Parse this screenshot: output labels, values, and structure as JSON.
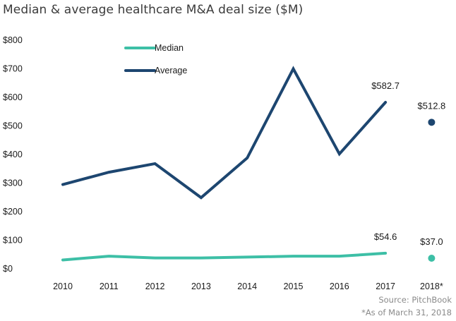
{
  "title": "Median & average healthcare M&A deal size ($M)",
  "source": "Source: PitchBook",
  "footnote": "*As of March 31, 2018",
  "colors": {
    "median": "#3dbfa6",
    "average": "#1d4670"
  },
  "chart_data": {
    "type": "line",
    "title": "Median & average healthcare M&A deal size ($M)",
    "xlabel": "",
    "ylabel": "",
    "categories": [
      "2010",
      "2011",
      "2012",
      "2013",
      "2014",
      "2015",
      "2016",
      "2017",
      "2018*"
    ],
    "yticks": [
      "$0",
      "$100",
      "$200",
      "$300",
      "$400",
      "$500",
      "$600",
      "$700",
      "$800"
    ],
    "ylim": [
      0,
      800
    ],
    "grid": false,
    "legend": "top-left",
    "series": [
      {
        "name": "Median",
        "color": "#3dbfa6",
        "values": [
          31,
          44,
          38,
          38,
          41,
          44,
          44,
          54.6,
          37.0
        ],
        "labels": [
          null,
          null,
          null,
          null,
          null,
          null,
          null,
          "$54.6",
          "$37.0"
        ]
      },
      {
        "name": "Average",
        "color": "#1d4670",
        "values": [
          295,
          338,
          368,
          249,
          388,
          700,
          402,
          582.7,
          512.8
        ],
        "labels": [
          null,
          null,
          null,
          null,
          null,
          null,
          null,
          "$582.7",
          "$512.8"
        ]
      }
    ],
    "note": "2018* shown as a separate point, not connected to the line"
  }
}
